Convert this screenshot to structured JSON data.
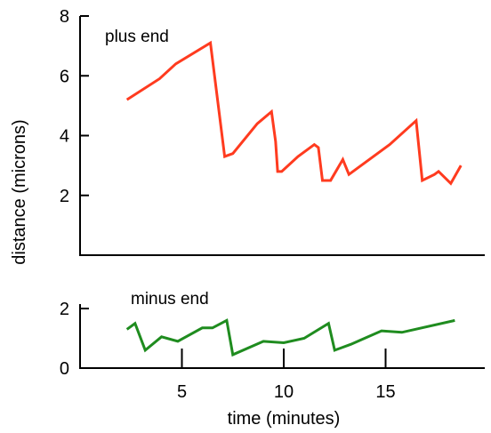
{
  "chart_data": [
    {
      "type": "line",
      "panel": "top",
      "annotation": "plus end",
      "ylim": [
        0,
        8
      ],
      "yticks": [
        "2",
        "4",
        "6",
        "8"
      ],
      "xlim": [
        0,
        19
      ],
      "color": "#ff3b1f",
      "series": [
        {
          "x": [
            2.3,
            3.9,
            4.7,
            6.4,
            7.1,
            7.5,
            8.7,
            9.4,
            9.6,
            9.7,
            9.9,
            10.7,
            11.5,
            11.7,
            11.9,
            12.3,
            12.9,
            13.2,
            15.2,
            16.5,
            16.8,
            17.4,
            17.6,
            18.2,
            18.7
          ],
          "y": [
            5.2,
            5.9,
            6.4,
            7.1,
            3.3,
            3.4,
            4.4,
            4.8,
            3.8,
            2.8,
            2.8,
            3.3,
            3.7,
            3.6,
            2.5,
            2.5,
            3.2,
            2.7,
            3.7,
            4.5,
            2.5,
            2.7,
            2.8,
            2.4,
            3.0
          ]
        }
      ]
    },
    {
      "type": "line",
      "panel": "bottom",
      "annotation": "minus end",
      "ylim": [
        0,
        2
      ],
      "yticks": [
        "0",
        "2"
      ],
      "xlim": [
        0,
        19
      ],
      "xticks": [
        "5",
        "10",
        "15"
      ],
      "xlabel": "time (minutes)",
      "color": "#1f8c1f",
      "series": [
        {
          "x": [
            2.3,
            2.7,
            3.2,
            4.0,
            4.8,
            6.0,
            6.5,
            7.2,
            7.5,
            9.0,
            10.0,
            11.0,
            12.2,
            12.5,
            13.3,
            14.8,
            15.8,
            18.4
          ],
          "y": [
            1.3,
            1.5,
            0.6,
            1.05,
            0.9,
            1.35,
            1.35,
            1.6,
            0.45,
            0.9,
            0.85,
            1.0,
            1.5,
            0.6,
            0.8,
            1.25,
            1.2,
            1.6
          ]
        }
      ]
    }
  ],
  "ylabel": "distance (microns)"
}
